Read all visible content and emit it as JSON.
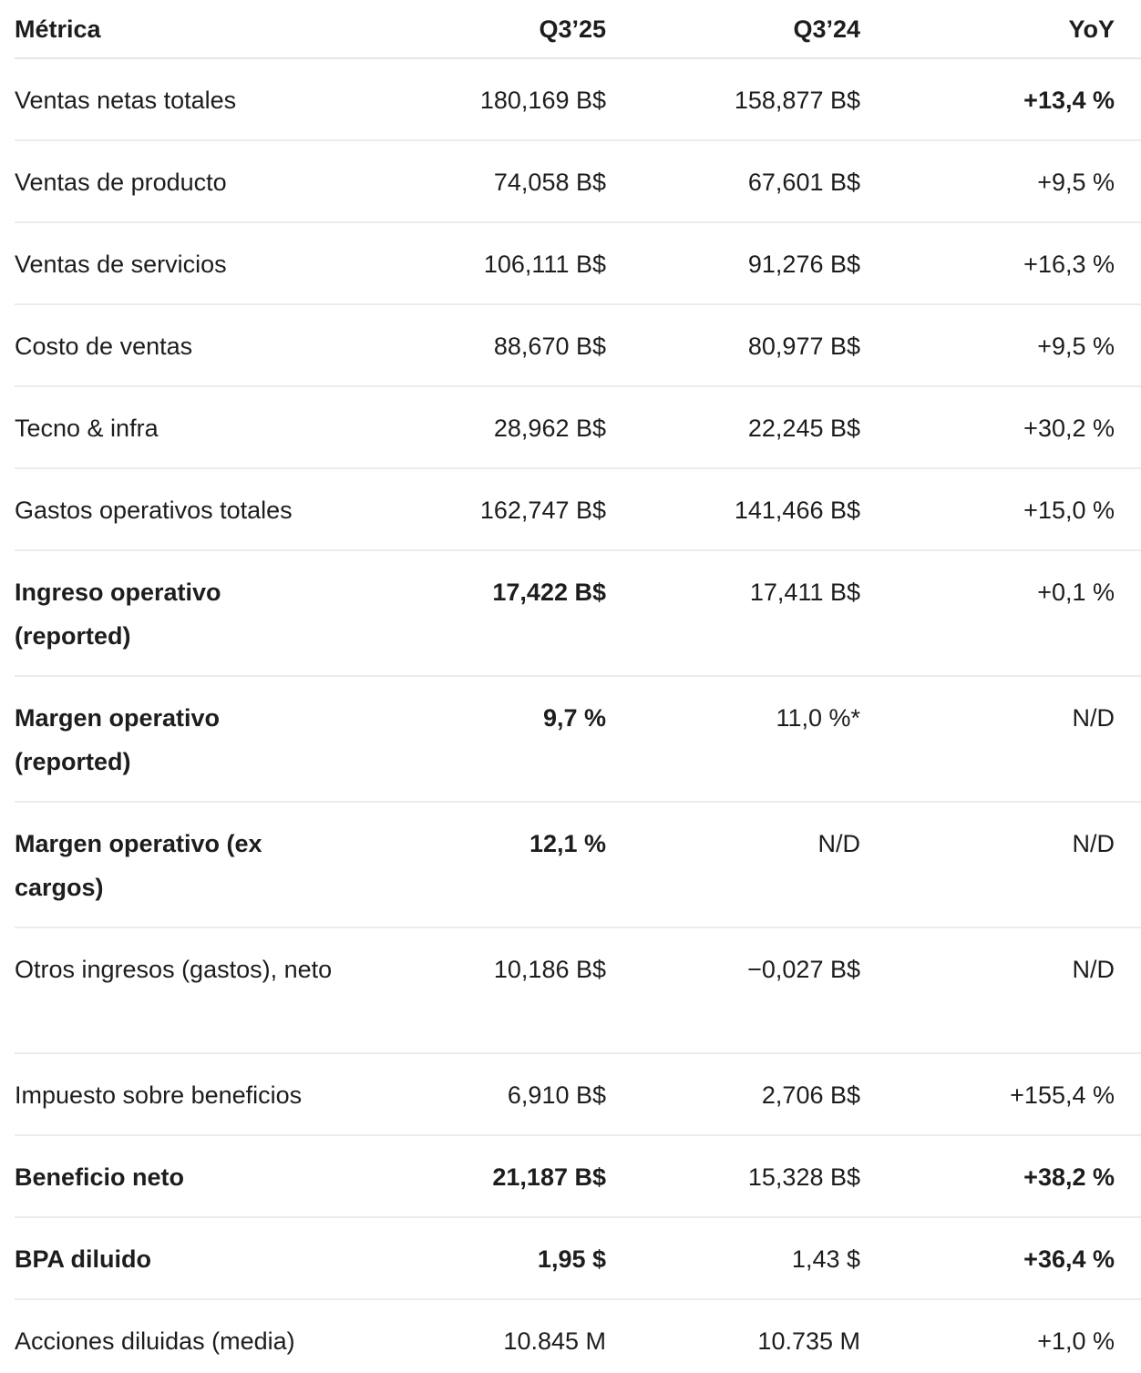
{
  "table": {
    "headers": {
      "metric": "Métrica",
      "q25": "Q3’25",
      "q24": "Q3’24",
      "yoy": "YoY"
    },
    "rows": [
      {
        "metric": "Ventas netas totales",
        "q25": "180,169 B$",
        "q24": "158,877 B$",
        "yoy": "+13,4 %"
      },
      {
        "metric": "Ventas de producto",
        "q25": "74,058 B$",
        "q24": "67,601 B$",
        "yoy": "+9,5 %"
      },
      {
        "metric": "Ventas de servicios",
        "q25": "106,111 B$",
        "q24": "91,276 B$",
        "yoy": "+16,3 %"
      },
      {
        "metric": "Costo de ventas",
        "q25": "88,670 B$",
        "q24": "80,977 B$",
        "yoy": "+9,5 %"
      },
      {
        "metric": "Tecno & infra",
        "q25": "28,962 B$",
        "q24": "22,245 B$",
        "yoy": "+30,2 %"
      },
      {
        "metric": "Gastos operativos totales",
        "q25": "162,747 B$",
        "q24": "141,466 B$",
        "yoy": "+15,0 %"
      },
      {
        "metric": "Ingreso operativo (reported)",
        "q25": "17,422 B$",
        "q24": "17,411 B$",
        "yoy": "+0,1 %"
      },
      {
        "metric": "Margen operativo (reported)",
        "q25": "9,7 %",
        "q24": "11,0 %*",
        "yoy": "N/D"
      },
      {
        "metric": "Margen operativo (ex cargos)",
        "q25": "12,1 %",
        "q24": "N/D",
        "yoy": "N/D"
      },
      {
        "metric": "Otros ingresos (gastos), neto",
        "q25": "10,186 B$",
        "q24": "−0,027 B$",
        "yoy": "N/D"
      },
      {
        "metric": "Impuesto sobre beneficios",
        "q25": "6,910 B$",
        "q24": "2,706 B$",
        "yoy": "+155,4 %"
      },
      {
        "metric": "Beneficio neto",
        "q25": "21,187 B$",
        "q24": "15,328 B$",
        "yoy": "+38,2 %"
      },
      {
        "metric": "BPA diluido",
        "q25": "1,95 $",
        "q24": "1,43 $",
        "yoy": "+36,4 %"
      },
      {
        "metric": "Acciones diluidas (media)",
        "q25": "10.845 M",
        "q24": "10.735 M",
        "yoy": "+1,0 %"
      }
    ]
  }
}
